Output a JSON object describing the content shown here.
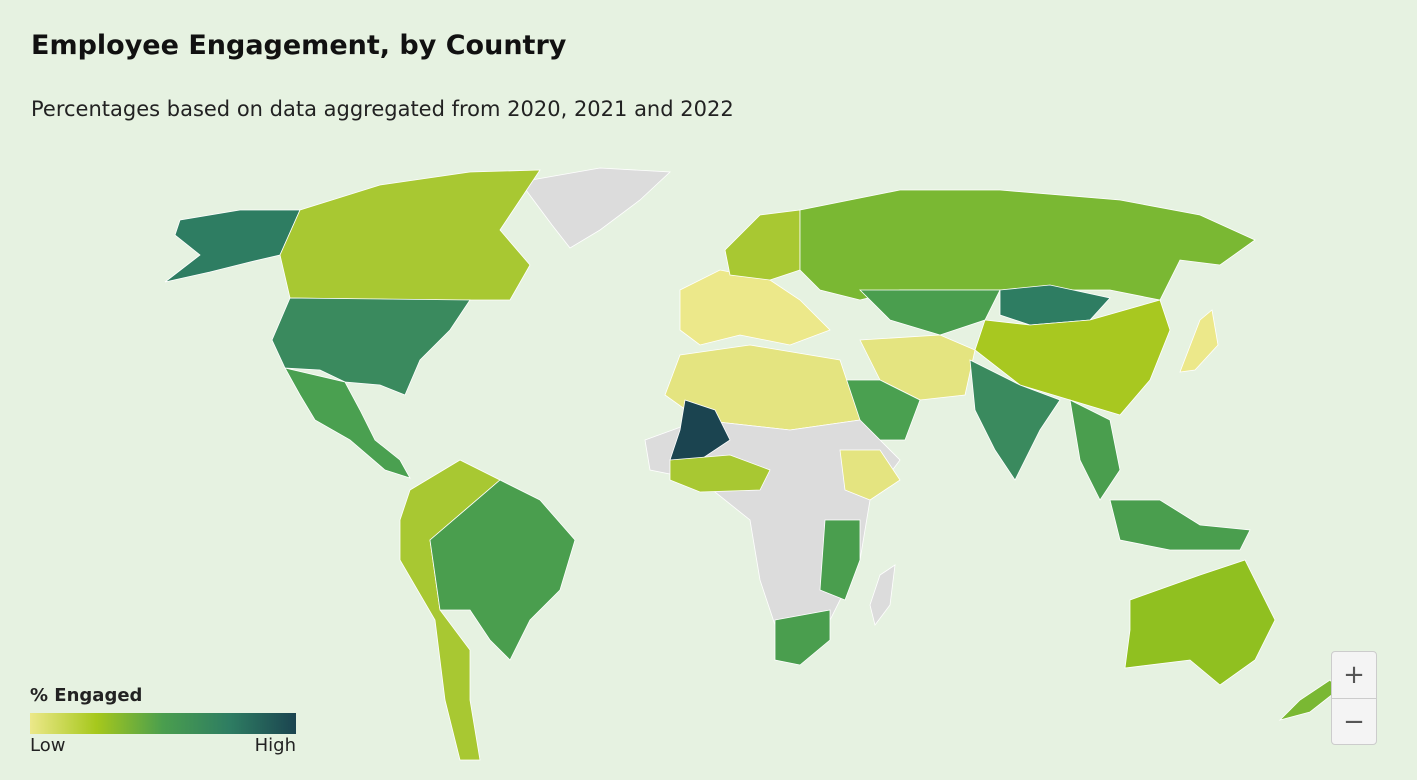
{
  "header": {
    "title": "Employee Engagement, by Country",
    "subtitle": "Percentages based on data aggregated from 2020, 2021 and 2022"
  },
  "legend": {
    "title": "% Engaged",
    "low": "Low",
    "high": "High"
  },
  "zoom": {
    "in": "+",
    "out": "−"
  }
}
